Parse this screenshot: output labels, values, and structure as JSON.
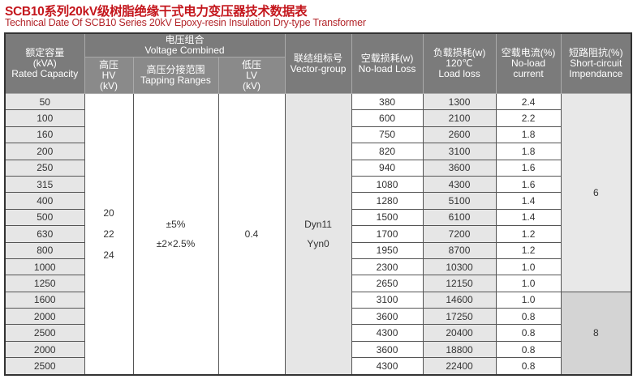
{
  "title": "SCB10系列20kV级树脂绝缘干式电力变压器技术数据表",
  "subtitle": "Technical Date Of  SCB10 Series 20kV Epoxy-resin Insulation Dry-type Transformer",
  "headers": {
    "capacity": [
      "额定容量",
      "(kVA)",
      "Rated Capacity"
    ],
    "voltage_combined": [
      "电压组合",
      "Voltage Combined"
    ],
    "hv": [
      "高压",
      "HV",
      "(kV)"
    ],
    "tapping": [
      "高压分接范围",
      "Tapping Ranges"
    ],
    "lv": [
      "低压",
      "LV",
      "(kV)"
    ],
    "vector": [
      "联结组标号",
      "Vector-group"
    ],
    "noload_loss": [
      "空载损耗(w)",
      "No-load Loss"
    ],
    "load_loss": [
      "负载损耗(w)",
      "120℃",
      "Load loss"
    ],
    "noload_current": [
      "空载电流(%)",
      "No-load",
      "current"
    ],
    "impedance": [
      "短路阻抗(%)",
      "Short-circuit",
      "Impendance"
    ]
  },
  "shared": {
    "hv": [
      "20",
      "22",
      "24"
    ],
    "tapping": [
      "±5%",
      "±2×2.5%"
    ],
    "lv": "0.4",
    "vector": [
      "Dyn11",
      "Yyn0"
    ],
    "impedance_a": "6",
    "impedance_b": "8"
  },
  "rows": [
    [
      "50",
      "380",
      "1300",
      "2.4"
    ],
    [
      "100",
      "600",
      "2100",
      "2.2"
    ],
    [
      "160",
      "750",
      "2600",
      "1.8"
    ],
    [
      "200",
      "820",
      "3100",
      "1.8"
    ],
    [
      "250",
      "940",
      "3600",
      "1.6"
    ],
    [
      "315",
      "1080",
      "4300",
      "1.6"
    ],
    [
      "400",
      "1280",
      "5100",
      "1.4"
    ],
    [
      "500",
      "1500",
      "6100",
      "1.4"
    ],
    [
      "630",
      "1700",
      "7200",
      "1.2"
    ],
    [
      "800",
      "1950",
      "8700",
      "1.2"
    ],
    [
      "1000",
      "2300",
      "10300",
      "1.0"
    ],
    [
      "1250",
      "2650",
      "12150",
      "1.0"
    ],
    [
      "1600",
      "3100",
      "14600",
      "1.0"
    ],
    [
      "2000",
      "3600",
      "17250",
      "0.8"
    ],
    [
      "2500",
      "4300",
      "20400",
      "0.8"
    ],
    [
      "2000",
      "3600",
      "18800",
      "0.8"
    ],
    [
      "2500",
      "4300",
      "22400",
      "0.8"
    ]
  ]
}
